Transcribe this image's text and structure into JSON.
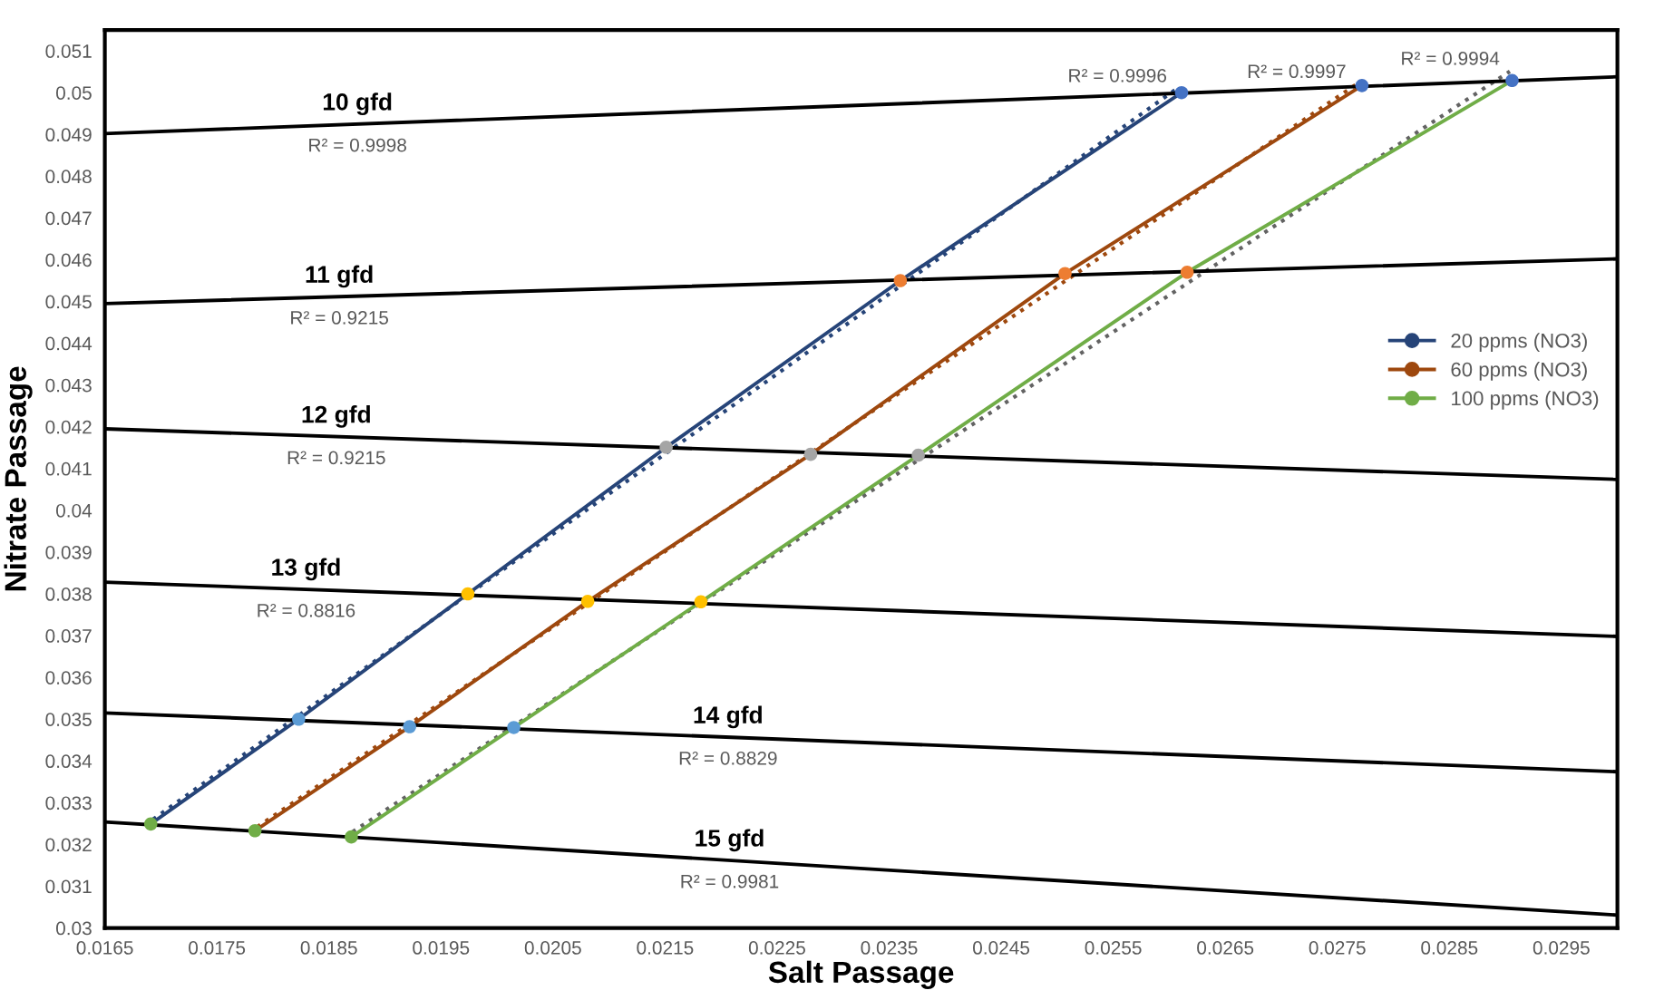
{
  "chart_data": {
    "type": "line",
    "xlabel": "Salt Passage",
    "ylabel": "Nitrate Passage",
    "xlim": [
      0.0165,
      0.03
    ],
    "ylim": [
      0.03,
      0.0515
    ],
    "xticks": [
      0.0165,
      0.0175,
      0.0185,
      0.0195,
      0.0205,
      0.0215,
      0.0225,
      0.0235,
      0.0245,
      0.0255,
      0.0265,
      0.0275,
      0.0285,
      0.0295
    ],
    "yticks": [
      0.03,
      0.031,
      0.032,
      0.033,
      0.034,
      0.035,
      0.036,
      0.037,
      0.038,
      0.039,
      0.04,
      0.041,
      0.042,
      0.043,
      0.044,
      0.045,
      0.046,
      0.047,
      0.048,
      0.049,
      0.05,
      0.051
    ],
    "grid": false,
    "legend": "right",
    "marker": "circle",
    "line_style": "solid",
    "series": [
      {
        "name": "20 ppms (NO3)",
        "color": "#264478",
        "x": [
          0.01691,
          0.01823,
          0.01974,
          0.02151,
          0.0236,
          0.02611
        ],
        "values": [
          0.03249,
          0.035,
          0.038,
          0.04151,
          0.0455,
          0.05
        ],
        "colors": [
          "#70ad47",
          "#5b9bd5",
          "#ffc000",
          "#a5a5a5",
          "#ed7d31",
          "#4472c4"
        ]
      },
      {
        "name": "60 ppms (NO3)",
        "color": "#9e480e",
        "x": [
          0.01784,
          0.01922,
          0.02081,
          0.0228,
          0.02507,
          0.02772
        ],
        "values": [
          0.03233,
          0.03482,
          0.03782,
          0.04134,
          0.04567,
          0.05017
        ],
        "colors": [
          "#70ad47",
          "#5b9bd5",
          "#ffc000",
          "#a5a5a5",
          "#ed7d31",
          "#4472c4"
        ]
      },
      {
        "name": "100 ppms (NO3)",
        "color": "#70ad47",
        "x": [
          0.0187,
          0.02015,
          0.02182,
          0.02376,
          0.02616,
          0.02906
        ],
        "values": [
          0.03218,
          0.0348,
          0.03781,
          0.04132,
          0.0457,
          0.05029
        ],
        "colors": [
          "#70ad47",
          "#5b9bd5",
          "#ffc000",
          "#a5a5a5",
          "#ed7d31",
          "#4472c4"
        ]
      },
      {
        "type": "line",
        "color": "#264478",
        "line_style": "dotted",
        "marker": "none",
        "x": [
          0.01693,
          0.02607
        ],
        "values": [
          0.0326,
          0.0501
        ]
      },
      {
        "type": "line",
        "color": "#9e480e",
        "line_style": "dotted",
        "marker": "none",
        "x": [
          0.01786,
          0.02767
        ],
        "values": [
          0.03242,
          0.0502
        ]
      },
      {
        "type": "line",
        "color": "#636363",
        "line_style": "dotted",
        "marker": "none",
        "x": [
          0.01871,
          0.02904
        ],
        "values": [
          0.0323,
          0.05051
        ]
      },
      {
        "type": "line",
        "name": "10 gfd",
        "color": "#000000",
        "marker": "none",
        "x": [
          0.0165,
          0.03
        ],
        "values": [
          0.04902,
          0.05038
        ]
      },
      {
        "type": "line",
        "name": "11 gfd",
        "color": "#000000",
        "marker": "none",
        "x": [
          0.0165,
          0.03
        ],
        "values": [
          0.04495,
          0.04602
        ]
      },
      {
        "type": "line",
        "name": "12 gfd",
        "color": "#000000",
        "marker": "none",
        "x": [
          0.0165,
          0.03
        ],
        "values": [
          0.04195,
          0.04074
        ]
      },
      {
        "type": "line",
        "name": "13 gfd",
        "color": "#000000",
        "marker": "none",
        "x": [
          0.0165,
          0.03
        ],
        "values": [
          0.03828,
          0.03698
        ]
      },
      {
        "type": "line",
        "name": "14 gfd",
        "color": "#000000",
        "marker": "none",
        "x": [
          0.0165,
          0.03
        ],
        "values": [
          0.03515,
          0.03374
        ]
      },
      {
        "type": "line",
        "name": "15 gfd",
        "color": "#000000",
        "marker": "none",
        "x": [
          0.0165,
          0.03
        ],
        "values": [
          0.03254,
          0.03031
        ]
      }
    ],
    "annotations": [
      "R² = 0.9996",
      "R² = 0.9997",
      "R² = 0.9994",
      "R² = 0.9998",
      "R² = 0.9215",
      "R² = 0.9215",
      "R² = 0.8816",
      "R² = 0.8829",
      "R² = 0.9981"
    ]
  }
}
